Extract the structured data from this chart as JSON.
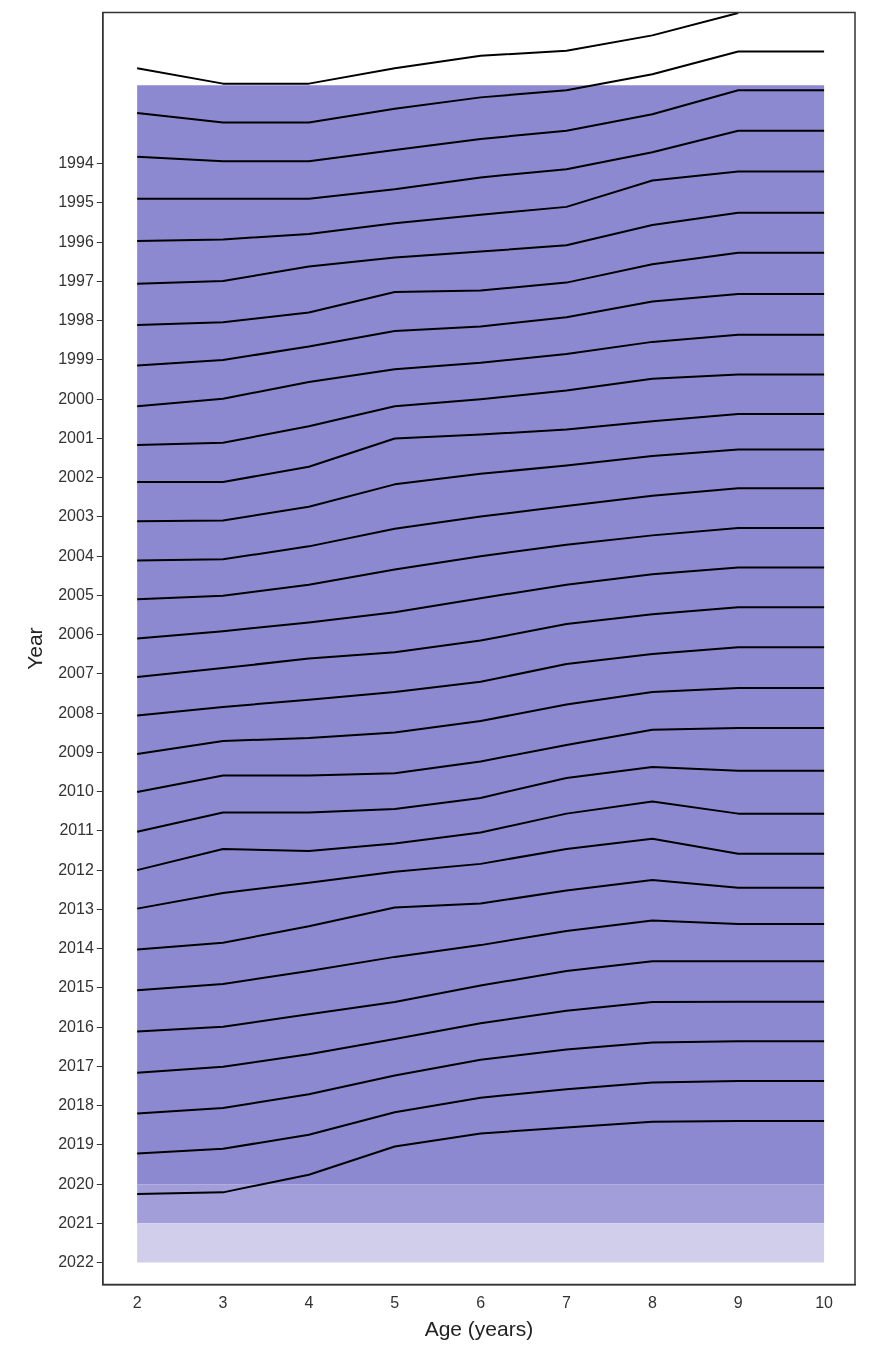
{
  "chart_data": {
    "type": "line",
    "xlabel": "Age (years)",
    "ylabel": "Year",
    "x": [
      2,
      3,
      4,
      5,
      6,
      7,
      8,
      9,
      10
    ],
    "xlim": [
      1.6,
      10.36
    ],
    "xticks": [
      2,
      3,
      4,
      5,
      6,
      7,
      8,
      9,
      10
    ],
    "ylim": [
      2022.56,
      1990.15
    ],
    "yticks": [
      1994,
      1995,
      1996,
      1997,
      1998,
      1999,
      2000,
      2001,
      2002,
      2003,
      2004,
      2005,
      2006,
      2007,
      2008,
      2009,
      2010,
      2011,
      2012,
      2013,
      2014,
      2015,
      2016,
      2017,
      2018,
      2019,
      2020,
      2021,
      2022
    ],
    "grid": false,
    "legend": false,
    "marker": "none",
    "line_style": "solid",
    "bands": [
      {
        "axis": "y",
        "from": 1992,
        "to": 2020,
        "color": "#8d89d1"
      },
      {
        "axis": "y",
        "from": 2020,
        "to": 2021,
        "color": "#a19ed9"
      },
      {
        "axis": "y",
        "from": 2021,
        "to": 2022,
        "color": "#d0ceeb"
      }
    ],
    "series": [
      {
        "color": "#000000",
        "values": [
          1991.57,
          1991.96,
          1991.96,
          1991.57,
          1991.25,
          1991.12,
          1990.73,
          1990.16,
          null
        ]
      },
      {
        "color": "#000000",
        "values": [
          1992.71,
          1992.95,
          1992.95,
          1992.6,
          1992.31,
          1992.13,
          1991.72,
          1991.14,
          1991.14
        ]
      },
      {
        "color": "#000000",
        "values": [
          1993.82,
          1993.94,
          1993.94,
          1993.65,
          1993.37,
          1993.16,
          1992.74,
          1992.13,
          1992.13
        ]
      },
      {
        "color": "#000000",
        "values": [
          1994.89,
          1994.89,
          1994.89,
          1994.65,
          1994.35,
          1994.14,
          1993.71,
          1993.16,
          1993.16
        ]
      },
      {
        "color": "#000000",
        "values": [
          1995.97,
          1995.93,
          1995.79,
          1995.52,
          1995.3,
          1995.1,
          1994.43,
          1994.2,
          1994.2
        ]
      },
      {
        "color": "#000000",
        "values": [
          1997.06,
          1996.99,
          1996.62,
          1996.39,
          1996.24,
          1996.08,
          1995.56,
          1995.25,
          1995.25
        ]
      },
      {
        "color": "#000000",
        "values": [
          1998.11,
          1998.04,
          1997.79,
          1997.27,
          1997.23,
          1997.03,
          1996.56,
          1996.27,
          1996.27
        ]
      },
      {
        "color": "#000000",
        "values": [
          1999.14,
          1999.0,
          1998.66,
          1998.26,
          1998.15,
          1997.91,
          1997.51,
          1997.32,
          1997.32
        ]
      },
      {
        "color": "#000000",
        "values": [
          2000.18,
          1999.99,
          1999.56,
          1999.24,
          1999.07,
          1998.85,
          1998.54,
          1998.36,
          1998.36
        ]
      },
      {
        "color": "#000000",
        "values": [
          2001.17,
          2001.11,
          2000.69,
          2000.18,
          2000.0,
          1999.78,
          1999.48,
          1999.37,
          1999.37
        ]
      },
      {
        "color": "#000000",
        "values": [
          2002.11,
          2002.11,
          2001.72,
          2001.0,
          2000.9,
          2000.77,
          2000.56,
          2000.38,
          2000.38
        ]
      },
      {
        "color": "#000000",
        "values": [
          2003.11,
          2003.09,
          2002.74,
          2002.17,
          2001.9,
          2001.69,
          2001.45,
          2001.28,
          2001.28
        ]
      },
      {
        "color": "#000000",
        "values": [
          2004.11,
          2004.08,
          2003.75,
          2003.3,
          2002.99,
          2002.72,
          2002.46,
          2002.27,
          2002.27
        ]
      },
      {
        "color": "#000000",
        "values": [
          2005.1,
          2005.01,
          2004.73,
          2004.34,
          2004.0,
          2003.71,
          2003.47,
          2003.28,
          2003.28
        ]
      },
      {
        "color": "#000000",
        "values": [
          2006.1,
          2005.91,
          2005.69,
          2005.43,
          2005.07,
          2004.73,
          2004.46,
          2004.29,
          2004.29
        ]
      },
      {
        "color": "#000000",
        "values": [
          2007.08,
          2006.85,
          2006.61,
          2006.45,
          2006.15,
          2005.73,
          2005.48,
          2005.3,
          2005.3
        ]
      },
      {
        "color": "#000000",
        "values": [
          2008.06,
          2007.84,
          2007.66,
          2007.46,
          2007.2,
          2006.75,
          2006.49,
          2006.32,
          2006.32
        ]
      },
      {
        "color": "#000000",
        "values": [
          2009.04,
          2008.71,
          2008.63,
          2008.49,
          2008.2,
          2007.78,
          2007.46,
          2007.36,
          2007.36
        ]
      },
      {
        "color": "#000000",
        "values": [
          2010.01,
          2009.59,
          2009.59,
          2009.53,
          2009.23,
          2008.81,
          2008.42,
          2008.38,
          2008.38
        ]
      },
      {
        "color": "#000000",
        "values": [
          2011.02,
          2010.53,
          2010.53,
          2010.44,
          2010.16,
          2009.65,
          2009.37,
          2009.47,
          2009.47
        ]
      },
      {
        "color": "#000000",
        "values": [
          2012.0,
          2011.46,
          2011.51,
          2011.32,
          2011.04,
          2010.56,
          2010.25,
          2010.56,
          2010.56
        ]
      },
      {
        "color": "#000000",
        "values": [
          2012.98,
          2012.58,
          2012.32,
          2012.04,
          2011.84,
          2011.46,
          2011.2,
          2011.58,
          2011.58
        ]
      },
      {
        "color": "#000000",
        "values": [
          2014.02,
          2013.85,
          2013.43,
          2012.95,
          2012.85,
          2012.52,
          2012.25,
          2012.45,
          2012.45
        ]
      },
      {
        "color": "#000000",
        "values": [
          2015.06,
          2014.9,
          2014.57,
          2014.21,
          2013.91,
          2013.55,
          2013.28,
          2013.37,
          2013.37
        ]
      },
      {
        "color": "#000000",
        "values": [
          2016.11,
          2015.99,
          2015.67,
          2015.36,
          2014.94,
          2014.57,
          2014.32,
          2014.32,
          2014.32
        ]
      },
      {
        "color": "#000000",
        "values": [
          2017.16,
          2017.01,
          2016.69,
          2016.3,
          2015.9,
          2015.58,
          2015.36,
          2015.35,
          2015.35
        ]
      },
      {
        "color": "#000000",
        "values": [
          2018.2,
          2018.06,
          2017.71,
          2017.23,
          2016.83,
          2016.57,
          2016.39,
          2016.36,
          2016.36
        ]
      },
      {
        "color": "#000000",
        "values": [
          2019.22,
          2019.1,
          2018.74,
          2018.17,
          2017.8,
          2017.58,
          2017.41,
          2017.37,
          2017.37
        ]
      },
      {
        "color": "#000000",
        "values": [
          2020.25,
          2020.21,
          2019.76,
          2019.04,
          2018.71,
          2018.56,
          2018.41,
          2018.39,
          2018.39
        ]
      }
    ]
  }
}
